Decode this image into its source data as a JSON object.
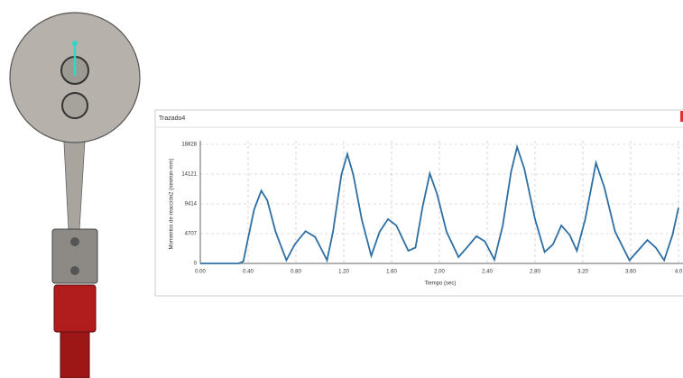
{
  "panel_title": "Trazado4",
  "chart_data": {
    "type": "line",
    "x_label": "Tiempo (sec)",
    "y_label": "Momentos de reacción2 (newton-mm)",
    "xlim": [
      0,
      4.0
    ],
    "ylim": [
      0,
      18828
    ],
    "xticks": [
      {
        "value": 0,
        "label": "0.00"
      },
      {
        "value": 0.4,
        "label": "0.40"
      },
      {
        "value": 0.8,
        "label": "0.80"
      },
      {
        "value": 1.2,
        "label": "1.20"
      },
      {
        "value": 1.6,
        "label": "1.60"
      },
      {
        "value": 2.0,
        "label": "2.00"
      },
      {
        "value": 2.4,
        "label": "2.40"
      },
      {
        "value": 2.8,
        "label": "2.80"
      },
      {
        "value": 3.2,
        "label": "3.20"
      },
      {
        "value": 3.6,
        "label": "3.60"
      },
      {
        "value": 4.0,
        "label": "4.0"
      }
    ],
    "yticks": [
      0,
      4707,
      9414,
      14121,
      18828
    ],
    "grid": true,
    "series": [
      {
        "color": "#2e6fa3",
        "x": [
          0,
          0.32,
          0.36,
          0.4,
          0.45,
          0.51,
          0.56,
          0.63,
          0.72,
          0.79,
          0.88,
          0.96,
          1.02,
          1.06,
          1.11,
          1.18,
          1.23,
          1.28,
          1.35,
          1.43,
          1.5,
          1.57,
          1.64,
          1.74,
          1.8,
          1.86,
          1.92,
          1.98,
          2.06,
          2.16,
          2.23,
          2.31,
          2.38,
          2.46,
          2.53,
          2.6,
          2.65,
          2.71,
          2.8,
          2.88,
          2.95,
          3.02,
          3.09,
          3.15,
          3.22,
          3.31,
          3.38,
          3.47,
          3.59,
          3.66,
          3.74,
          3.81,
          3.88,
          3.95,
          4.0
        ],
        "values": [
          0,
          0,
          300,
          4000,
          8500,
          11500,
          10000,
          5000,
          500,
          3000,
          5100,
          4200,
          2000,
          500,
          5000,
          14000,
          17300,
          14000,
          7000,
          1200,
          5000,
          7000,
          6000,
          2000,
          2500,
          9000,
          14200,
          11000,
          5000,
          1000,
          2500,
          4300,
          3500,
          600,
          6000,
          14500,
          18400,
          15000,
          7000,
          1800,
          3000,
          6000,
          4500,
          2000,
          7000,
          15900,
          12000,
          5000,
          500,
          2000,
          3700,
          2500,
          500,
          4500,
          8800
        ]
      }
    ]
  }
}
